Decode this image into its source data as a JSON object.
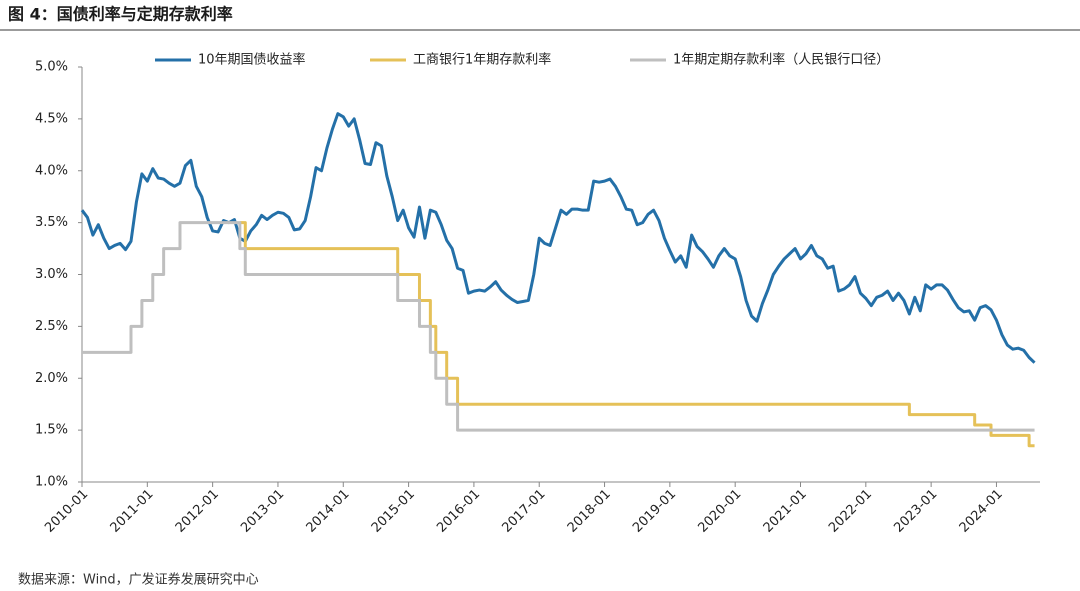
{
  "chart_data": {
    "type": "line",
    "title": "图 4：国债利率与定期存款利率",
    "source": "数据来源：Wind，广发证券发展研究中心",
    "legend": "top",
    "xlim": [
      "2010-01",
      "2024-09"
    ],
    "xticks": [
      "2010-01",
      "2011-01",
      "2012-01",
      "2013-01",
      "2014-01",
      "2015-01",
      "2016-01",
      "2017-01",
      "2018-01",
      "2019-01",
      "2020-01",
      "2021-01",
      "2022-01",
      "2023-01",
      "2024-01"
    ],
    "ylim": [
      1.0,
      5.0
    ],
    "yticks": [
      {
        "value": 1.0,
        "label": "1.0%"
      },
      {
        "value": 1.5,
        "label": "1.5%"
      },
      {
        "value": 2.0,
        "label": "2.0%"
      },
      {
        "value": 2.5,
        "label": "2.5%"
      },
      {
        "value": 3.0,
        "label": "3.0%"
      },
      {
        "value": 3.5,
        "label": "3.5%"
      },
      {
        "value": 4.0,
        "label": "4.0%"
      },
      {
        "value": 4.5,
        "label": "4.5%"
      },
      {
        "value": 5.0,
        "label": "5.0%"
      }
    ],
    "series": [
      {
        "name": "10年期国债收益率",
        "color": "#2470a8",
        "step": false,
        "x": [
          "2010-01",
          "2010-02",
          "2010-03",
          "2010-04",
          "2010-05",
          "2010-06",
          "2010-07",
          "2010-08",
          "2010-09",
          "2010-10",
          "2010-11",
          "2010-12",
          "2011-01",
          "2011-02",
          "2011-03",
          "2011-04",
          "2011-05",
          "2011-06",
          "2011-07",
          "2011-08",
          "2011-09",
          "2011-10",
          "2011-11",
          "2011-12",
          "2012-01",
          "2012-02",
          "2012-03",
          "2012-04",
          "2012-05",
          "2012-06",
          "2012-07",
          "2012-08",
          "2012-09",
          "2012-10",
          "2012-11",
          "2012-12",
          "2013-01",
          "2013-02",
          "2013-03",
          "2013-04",
          "2013-05",
          "2013-06",
          "2013-07",
          "2013-08",
          "2013-09",
          "2013-10",
          "2013-11",
          "2013-12",
          "2014-01",
          "2014-02",
          "2014-03",
          "2014-04",
          "2014-05",
          "2014-06",
          "2014-07",
          "2014-08",
          "2014-09",
          "2014-10",
          "2014-11",
          "2014-12",
          "2015-01",
          "2015-02",
          "2015-03",
          "2015-04",
          "2015-05",
          "2015-06",
          "2015-07",
          "2015-08",
          "2015-09",
          "2015-10",
          "2015-11",
          "2015-12",
          "2016-01",
          "2016-02",
          "2016-03",
          "2016-04",
          "2016-05",
          "2016-06",
          "2016-07",
          "2016-08",
          "2016-09",
          "2016-10",
          "2016-11",
          "2016-12",
          "2017-01",
          "2017-02",
          "2017-03",
          "2017-04",
          "2017-05",
          "2017-06",
          "2017-07",
          "2017-08",
          "2017-09",
          "2017-10",
          "2017-11",
          "2017-12",
          "2018-01",
          "2018-02",
          "2018-03",
          "2018-04",
          "2018-05",
          "2018-06",
          "2018-07",
          "2018-08",
          "2018-09",
          "2018-10",
          "2018-11",
          "2018-12",
          "2019-01",
          "2019-02",
          "2019-03",
          "2019-04",
          "2019-05",
          "2019-06",
          "2019-07",
          "2019-08",
          "2019-09",
          "2019-10",
          "2019-11",
          "2019-12",
          "2020-01",
          "2020-02",
          "2020-03",
          "2020-04",
          "2020-05",
          "2020-06",
          "2020-07",
          "2020-08",
          "2020-09",
          "2020-10",
          "2020-11",
          "2020-12",
          "2021-01",
          "2021-02",
          "2021-03",
          "2021-04",
          "2021-05",
          "2021-06",
          "2021-07",
          "2021-08",
          "2021-09",
          "2021-10",
          "2021-11",
          "2021-12",
          "2022-01",
          "2022-02",
          "2022-03",
          "2022-04",
          "2022-05",
          "2022-06",
          "2022-07",
          "2022-08",
          "2022-09",
          "2022-10",
          "2022-11",
          "2022-12",
          "2023-01",
          "2023-02",
          "2023-03",
          "2023-04",
          "2023-05",
          "2023-06",
          "2023-07",
          "2023-08",
          "2023-09",
          "2023-10",
          "2023-11",
          "2023-12",
          "2024-01",
          "2024-02",
          "2024-03",
          "2024-04",
          "2024-05",
          "2024-06",
          "2024-07",
          "2024-08"
        ],
        "values": [
          3.62,
          3.55,
          3.38,
          3.48,
          3.35,
          3.25,
          3.28,
          3.3,
          3.24,
          3.32,
          3.7,
          3.97,
          3.9,
          4.02,
          3.93,
          3.92,
          3.88,
          3.85,
          3.88,
          4.05,
          4.1,
          3.85,
          3.75,
          3.55,
          3.42,
          3.41,
          3.52,
          3.5,
          3.53,
          3.35,
          3.32,
          3.42,
          3.48,
          3.57,
          3.53,
          3.57,
          3.6,
          3.59,
          3.55,
          3.43,
          3.44,
          3.52,
          3.75,
          4.03,
          4.0,
          4.22,
          4.4,
          4.55,
          4.52,
          4.43,
          4.5,
          4.3,
          4.07,
          4.06,
          4.27,
          4.24,
          3.95,
          3.75,
          3.52,
          3.62,
          3.45,
          3.36,
          3.65,
          3.35,
          3.62,
          3.6,
          3.48,
          3.33,
          3.25,
          3.06,
          3.04,
          2.82,
          2.84,
          2.85,
          2.84,
          2.88,
          2.93,
          2.85,
          2.8,
          2.76,
          2.73,
          2.74,
          2.75,
          3.0,
          3.35,
          3.3,
          3.28,
          3.45,
          3.62,
          3.58,
          3.63,
          3.63,
          3.62,
          3.62,
          3.9,
          3.89,
          3.9,
          3.92,
          3.85,
          3.75,
          3.63,
          3.62,
          3.48,
          3.5,
          3.58,
          3.62,
          3.52,
          3.35,
          3.23,
          3.12,
          3.18,
          3.07,
          3.38,
          3.27,
          3.22,
          3.15,
          3.07,
          3.18,
          3.25,
          3.18,
          3.15,
          2.98,
          2.75,
          2.6,
          2.55,
          2.72,
          2.85,
          3.0,
          3.08,
          3.15,
          3.2,
          3.25,
          3.15,
          3.2,
          3.28,
          3.18,
          3.15,
          3.06,
          3.08,
          2.84,
          2.86,
          2.9,
          2.98,
          2.82,
          2.77,
          2.7,
          2.78,
          2.8,
          2.84,
          2.75,
          2.82,
          2.75,
          2.62,
          2.78,
          2.65,
          2.9,
          2.86,
          2.9,
          2.9,
          2.85,
          2.76,
          2.68,
          2.64,
          2.65,
          2.56,
          2.68,
          2.7,
          2.66,
          2.56,
          2.42,
          2.32,
          2.28,
          2.29,
          2.27,
          2.2,
          2.15
        ]
      },
      {
        "name": "工商银行1年期存款利率",
        "color": "#e5c158",
        "step": true,
        "x": [
          "2012-06",
          "2012-07",
          "2014-11",
          "2015-03",
          "2015-05",
          "2015-06",
          "2015-08",
          "2015-10",
          "2022-09",
          "2023-09",
          "2023-12",
          "2024-07",
          "2024-08"
        ],
        "values": [
          3.5,
          3.25,
          3.0,
          2.75,
          2.5,
          2.25,
          2.0,
          1.75,
          1.65,
          1.55,
          1.45,
          1.35,
          1.35
        ]
      },
      {
        "name": "1年期定期存款利率（人民银行口径）",
        "color": "#bfbfbf",
        "step": true,
        "x": [
          "2010-01",
          "2010-10",
          "2010-12",
          "2011-02",
          "2011-04",
          "2011-07",
          "2012-06",
          "2012-07",
          "2014-11",
          "2015-03",
          "2015-05",
          "2015-06",
          "2015-08",
          "2015-10",
          "2024-08"
        ],
        "values": [
          2.25,
          2.5,
          2.75,
          3.0,
          3.25,
          3.5,
          3.25,
          3.0,
          2.75,
          2.5,
          2.25,
          2.0,
          1.75,
          1.5,
          1.5
        ]
      }
    ]
  }
}
